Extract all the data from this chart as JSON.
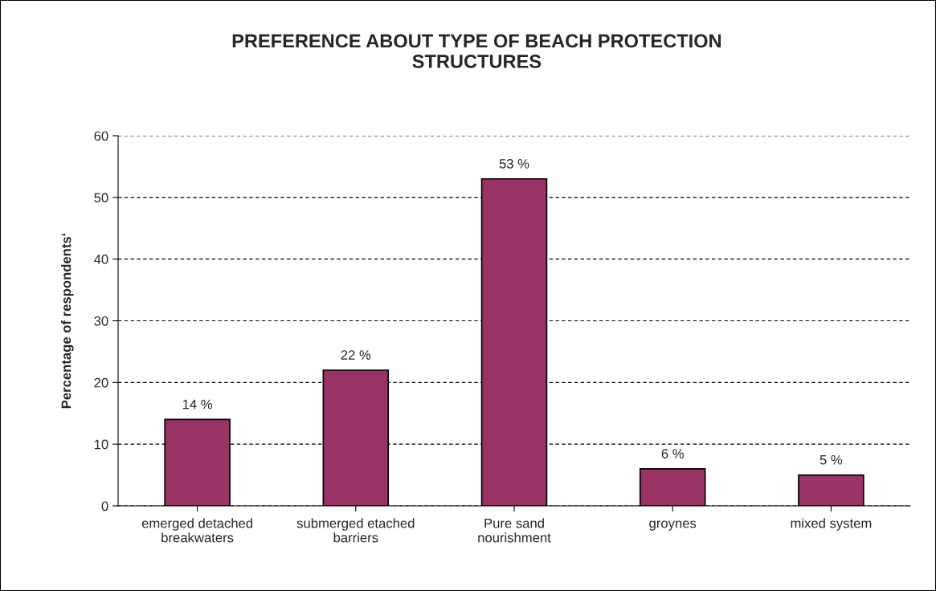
{
  "chart_data": {
    "type": "bar",
    "title": "PREFERENCE ABOUT TYPE OF BEACH PROTECTION\nSTRUCTURES",
    "ylabel": "Percentage of respondents‘",
    "categories": [
      "emerged detached\nbreakwaters",
      "submerged etached\nbarriers",
      "Pure sand\nnourishment",
      "groynes",
      "mixed system"
    ],
    "values": [
      14,
      22,
      53,
      6,
      5
    ],
    "value_labels": [
      "14 %",
      "22 %",
      "53 %",
      "6 %",
      "5 %"
    ],
    "color": "#993366",
    "ylim": [
      0,
      60
    ],
    "yticks": [
      0,
      10,
      20,
      30,
      40,
      50,
      60
    ],
    "grid": "y"
  }
}
